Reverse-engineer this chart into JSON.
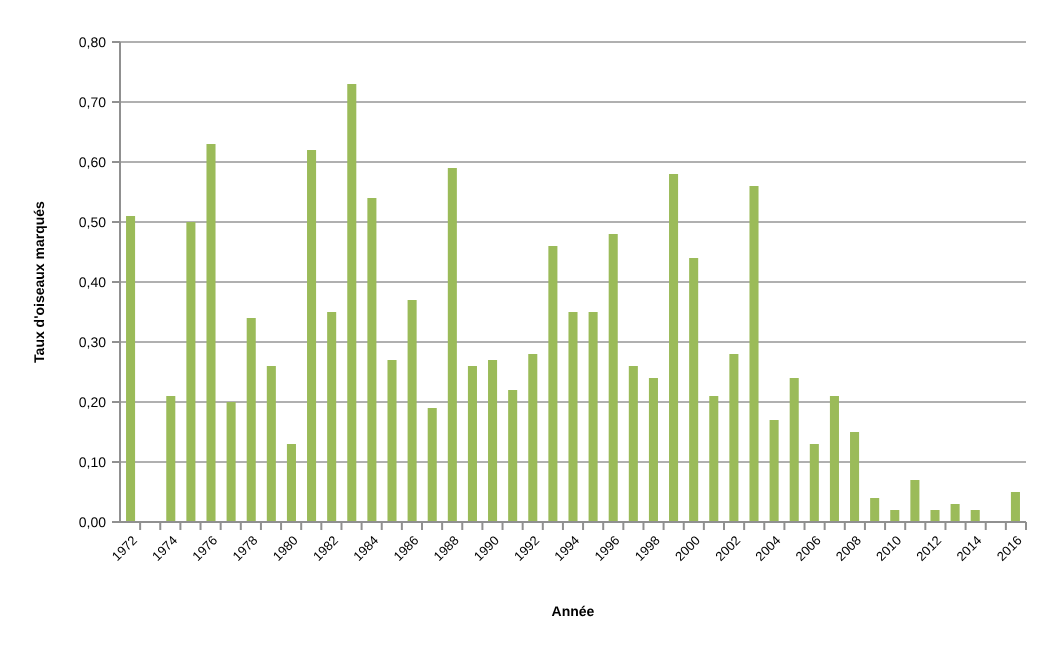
{
  "chart_data": {
    "type": "bar",
    "xlabel": "Année",
    "ylabel": "Taux d'oiseaux marqués",
    "categories": [
      "1972",
      null,
      "1974",
      null,
      "1976",
      null,
      "1978",
      null,
      "1980",
      null,
      "1982",
      null,
      "1984",
      null,
      "1986",
      null,
      "1988",
      null,
      "1990",
      null,
      "1992",
      null,
      "1994",
      null,
      "1996",
      null,
      "1998",
      null,
      "2000",
      null,
      "2002",
      null,
      "2004",
      null,
      "2006",
      null,
      "2008",
      null,
      "2010",
      null,
      "2012",
      null,
      "2014",
      null,
      "2016"
    ],
    "values": [
      0.51,
      null,
      0.21,
      0.5,
      0.63,
      0.2,
      0.34,
      0.26,
      0.13,
      0.62,
      0.35,
      0.73,
      0.54,
      0.27,
      0.37,
      0.19,
      0.59,
      0.26,
      0.27,
      0.22,
      0.28,
      0.46,
      0.35,
      0.35,
      0.48,
      0.26,
      0.24,
      0.58,
      0.44,
      0.21,
      0.28,
      0.56,
      0.17,
      0.24,
      0.13,
      0.21,
      0.15,
      0.04,
      0.02,
      0.07,
      0.02,
      0.03,
      0.02,
      null,
      0.05
    ],
    "color": "#9bbb59",
    "ylim": [
      0,
      0.8
    ],
    "yticks": [
      {
        "value": 0,
        "label": "0,00"
      },
      {
        "value": 0.1,
        "label": "0,10"
      },
      {
        "value": 0.2,
        "label": "0,20"
      },
      {
        "value": 0.3,
        "label": "0,30"
      },
      {
        "value": 0.4,
        "label": "0,40"
      },
      {
        "value": 0.5,
        "label": "0,50"
      },
      {
        "value": 0.6,
        "label": "0,60"
      },
      {
        "value": 0.7,
        "label": "0,70"
      },
      {
        "value": 0.8,
        "label": "0,80"
      }
    ],
    "grid": "y"
  }
}
